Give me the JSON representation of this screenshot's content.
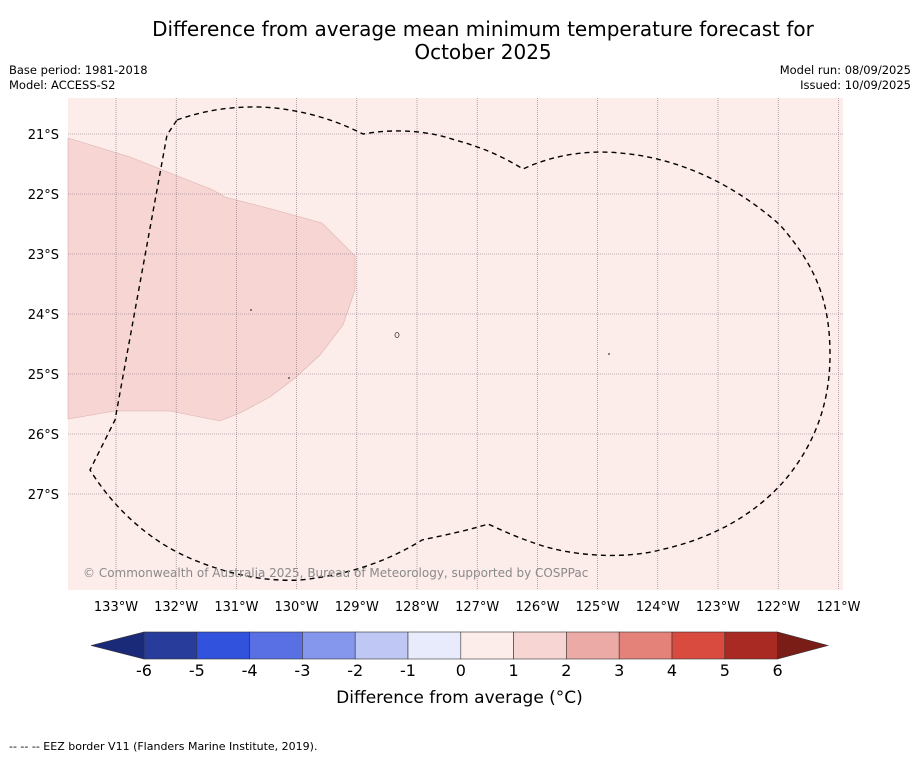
{
  "title": {
    "line1": "Difference from average mean minimum temperature forecast for",
    "line2": "October 2025"
  },
  "meta": {
    "base_period": "Base period: 1981-2018",
    "model": "Model: ACCESS-S2",
    "model_run": "Model run: 08/09/2025",
    "issued": "Issued: 10/09/2025"
  },
  "map": {
    "lat_labels": [
      "21°S",
      "22°S",
      "23°S",
      "24°S",
      "25°S",
      "26°S",
      "27°S"
    ],
    "lon_labels": [
      "133°W",
      "132°W",
      "131°W",
      "130°W",
      "129°W",
      "128°W",
      "127°W",
      "126°W",
      "125°W",
      "124°W",
      "123°W",
      "122°W",
      "121°W"
    ],
    "background_category": "0 to 1",
    "anomaly_patch_category": "1 to 2",
    "copyright": "© Commonwealth of Australia 2025, Bureau of Meteorology, supported by COSPPac"
  },
  "colorbar": {
    "ticks": [
      "-6",
      "-5",
      "-4",
      "-3",
      "-2",
      "-1",
      "0",
      "1",
      "2",
      "3",
      "4",
      "5",
      "6"
    ],
    "colors": [
      "#283c9c",
      "#3152dd",
      "#5870e3",
      "#8597ed",
      "#bfc7f5",
      "#e8ebfb",
      "#fcecea",
      "#f6d5d3",
      "#ebaaa5",
      "#e4827a",
      "#d94a3f",
      "#a92a22"
    ],
    "extend_low_color": "#1b2a78",
    "extend_high_color": "#7a1d17",
    "label": "Difference from average (°C)"
  },
  "footnote": "--  --  -- EEZ border V11 (Flanders Marine Institute, 2019)."
}
